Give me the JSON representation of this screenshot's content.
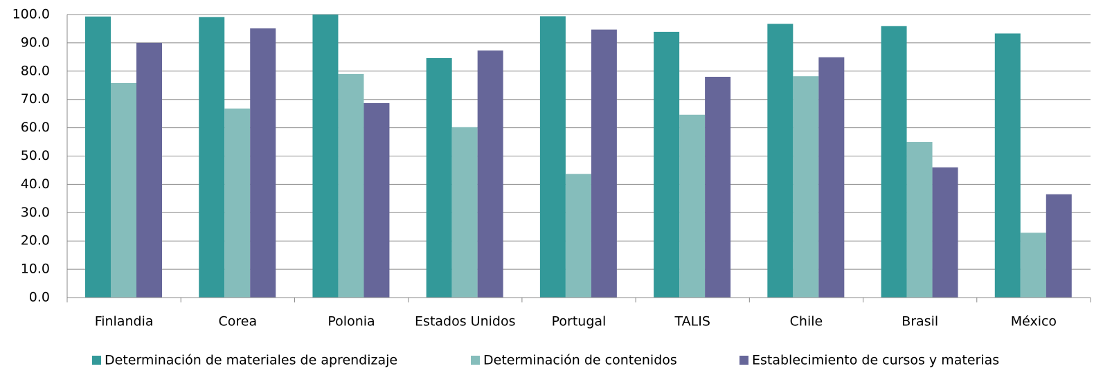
{
  "chart_data": {
    "type": "bar",
    "categories": [
      "Finlandia",
      "Corea",
      "Polonia",
      "Estados Unidos",
      "Portugal",
      "TALIS",
      "Chile",
      "Brasil",
      "México"
    ],
    "series": [
      {
        "name": "Determinación de materiales de aprendizaje",
        "color": "#339999",
        "values": [
          99.3,
          99.1,
          100.0,
          84.6,
          99.4,
          93.9,
          96.7,
          95.9,
          93.3
        ]
      },
      {
        "name": "Determinación de contenidos",
        "color": "#85bdbb",
        "values": [
          75.8,
          66.8,
          79.0,
          60.2,
          43.7,
          64.6,
          78.2,
          55.0,
          22.9
        ]
      },
      {
        "name": "Establecimiento de cursos y materias",
        "color": "#666699",
        "values": [
          90.0,
          95.1,
          68.7,
          87.3,
          94.7,
          78.0,
          84.9,
          46.0,
          36.5
        ]
      }
    ],
    "ylim": [
      0,
      100
    ],
    "yticks": [
      {
        "value": 0,
        "label": "0.0"
      },
      {
        "value": 10,
        "label": "10.0"
      },
      {
        "value": 20,
        "label": "20.0"
      },
      {
        "value": 30,
        "label": "30.0"
      },
      {
        "value": 40,
        "label": "40.0"
      },
      {
        "value": 50,
        "label": "50.0"
      },
      {
        "value": 60,
        "label": "60.0"
      },
      {
        "value": 70,
        "label": "70.0"
      },
      {
        "value": 80,
        "label": "80.0"
      },
      {
        "value": 90,
        "label": "90.0"
      },
      {
        "value": 100,
        "label": "100.0"
      }
    ],
    "grid": true,
    "legend": "bottom"
  }
}
